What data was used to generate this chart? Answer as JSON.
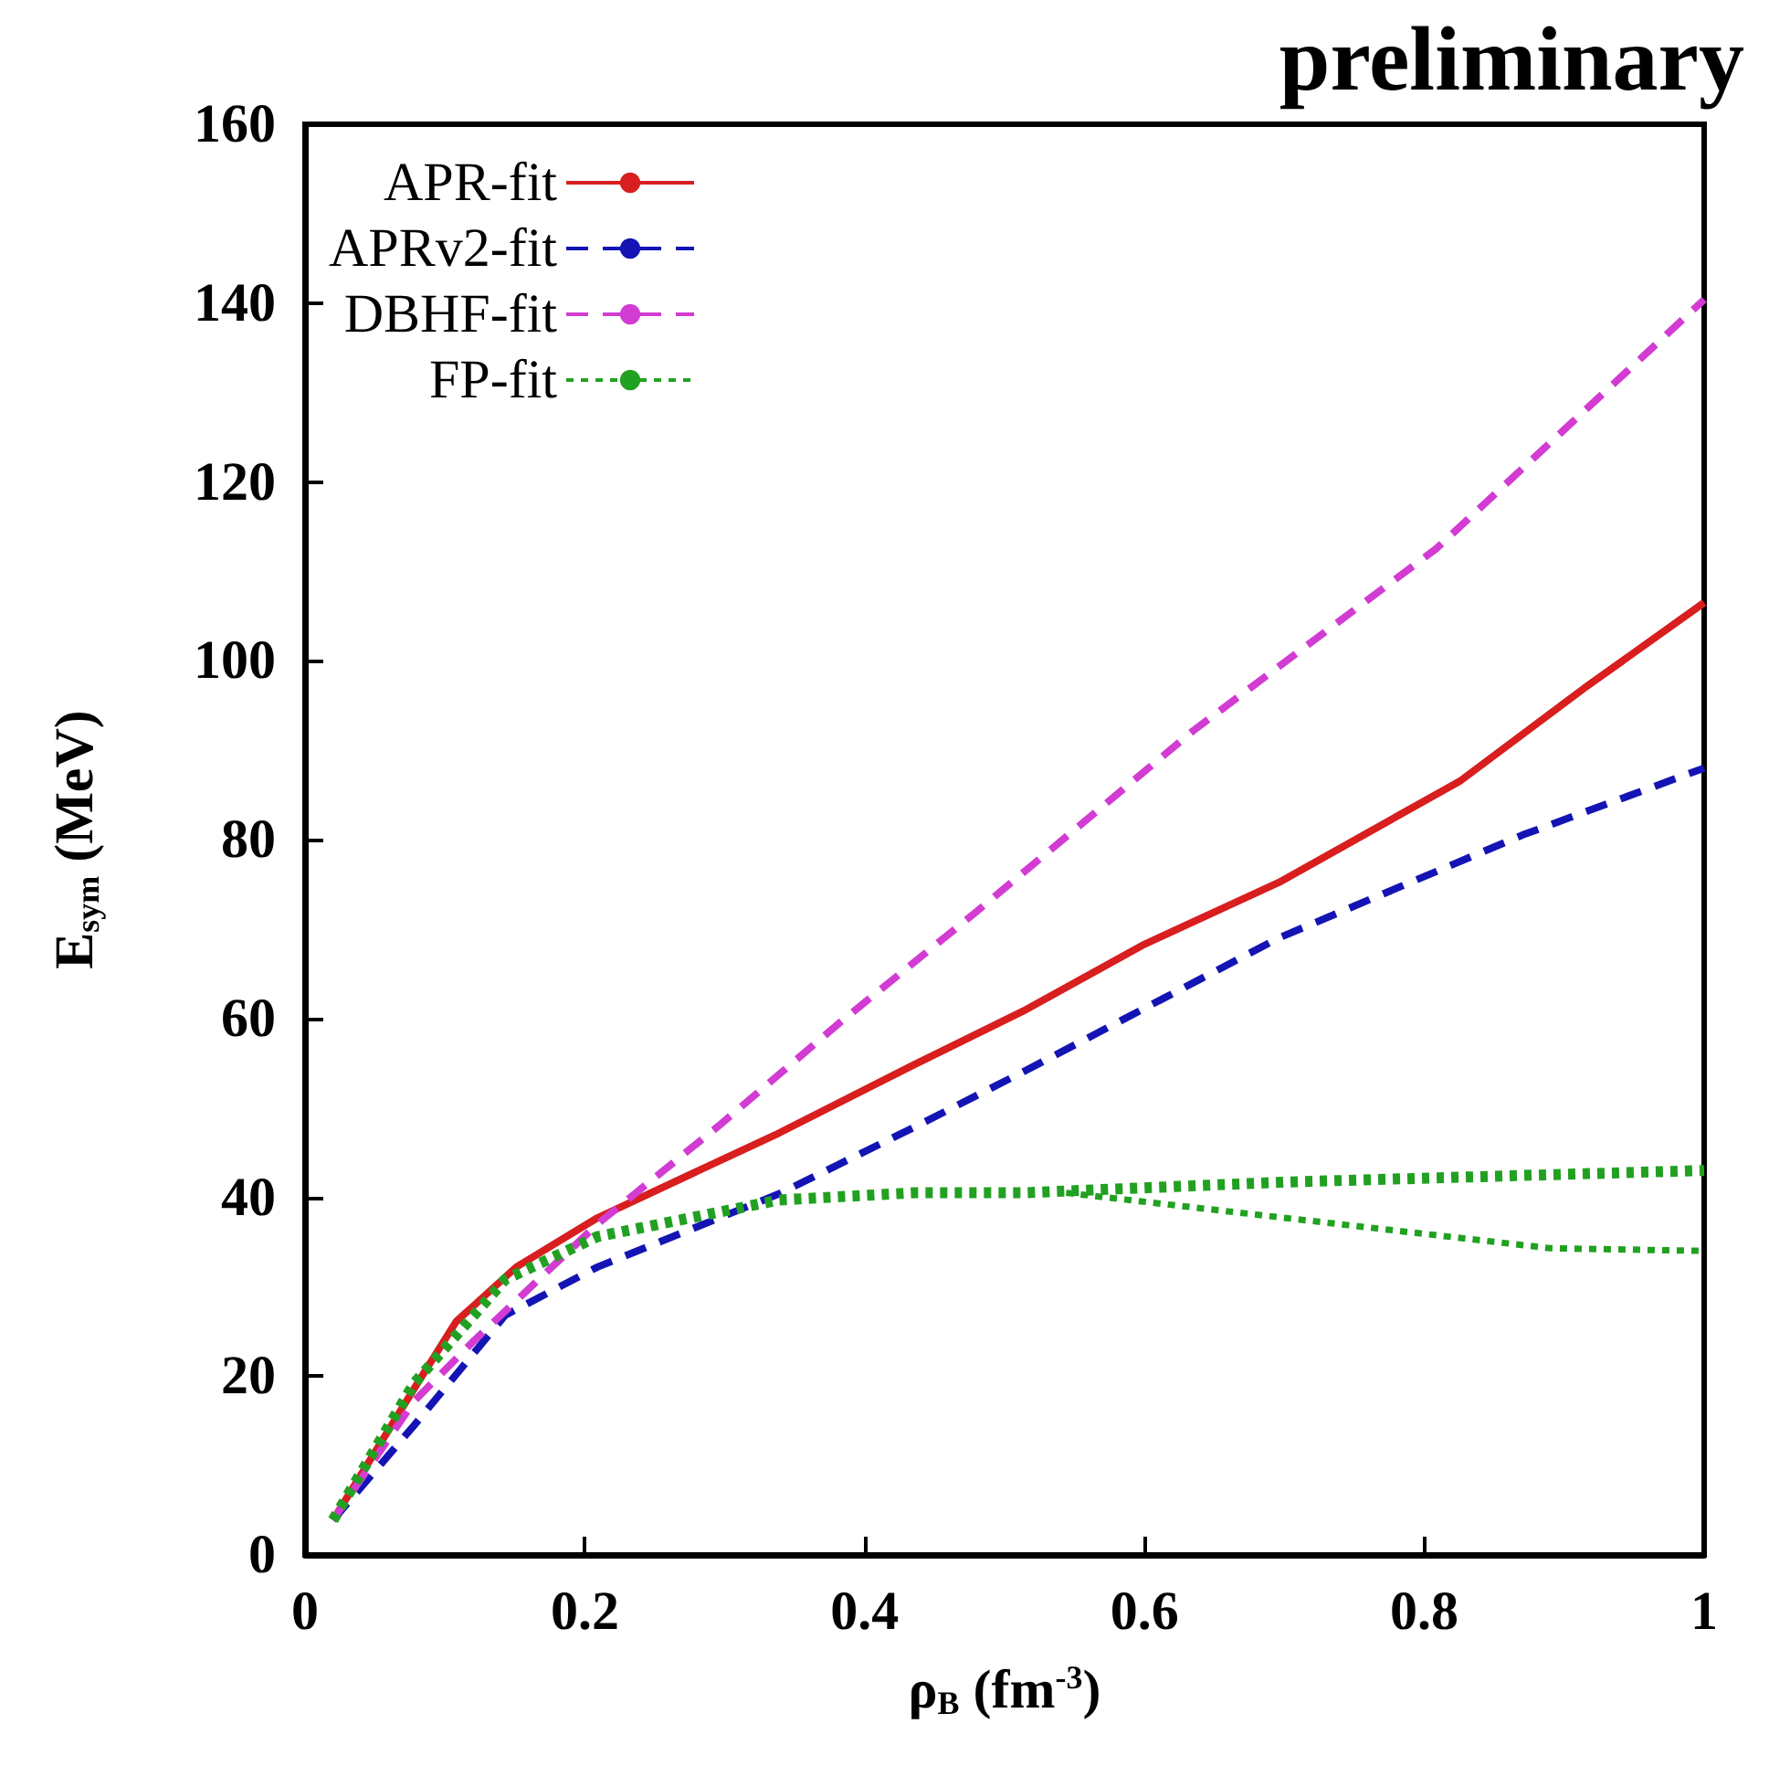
{
  "chart_data": {
    "type": "line",
    "title": "preliminary",
    "xlabel": "ρ$_{B}$ (fm$^{-3}$)",
    "ylabel": "E$_{sym}$ (MeV)",
    "xlim": [
      0,
      1
    ],
    "xticks": [
      0,
      0.2,
      0.4,
      0.6,
      0.8,
      1
    ],
    "ylim": [
      0,
      160
    ],
    "yticks": [
      0,
      20,
      40,
      60,
      80,
      100,
      120,
      140,
      160
    ],
    "grid": false,
    "legend": "top left",
    "marker": "none",
    "series": [
      {
        "name": "APR-fit",
        "color": "#d81e1e",
        "line_style": "solid",
        "x": [
          0.02,
          0.078,
          0.108,
          0.151,
          0.209,
          0.339,
          0.435,
          0.513,
          0.6,
          0.696,
          0.826,
          0.914,
          1
        ],
        "values": [
          3.9,
          18.6,
          26.1,
          32.2,
          37.7,
          47.2,
          54.8,
          60.8,
          68.3,
          75.2,
          86.6,
          96.9,
          106.5
        ]
      },
      {
        "name": "APRv2-fit",
        "color": "#1414b4",
        "line_style": "dashed",
        "x": [
          0.02,
          0.078,
          0.143,
          0.209,
          0.339,
          0.435,
          0.513,
          0.696,
          0.87,
          1
        ],
        "values": [
          3.9,
          14.5,
          26.8,
          32.2,
          40.4,
          47.8,
          54,
          69,
          80.5,
          88
        ]
      },
      {
        "name": "DBHF-fit",
        "color": "#d23cd2",
        "line_style": "dashed",
        "x": [
          0.02,
          0.078,
          0.121,
          0.209,
          0.295,
          0.382,
          0.478,
          0.635,
          0.809,
          1
        ],
        "values": [
          3.9,
          17.2,
          24,
          37,
          47.9,
          59.5,
          71.7,
          92.2,
          112.6,
          140.4
        ]
      },
      {
        "name": "FP-fit",
        "color": "#22a022",
        "line_style": "dotted",
        "x": [
          0.02,
          0.078,
          0.143,
          0.209,
          0.339,
          0.435,
          0.513,
          0.7,
          1
        ],
        "values": [
          3.9,
          19.2,
          30.8,
          35.6,
          39.7,
          40.5,
          40.5,
          41.7,
          43
        ]
      },
      {
        "color": "#22a022",
        "line_style": "dotted",
        "x": [
          0.544,
          0.739,
          0.89,
          1
        ],
        "values": [
          40.5,
          37,
          34.3,
          34
        ]
      }
    ]
  }
}
